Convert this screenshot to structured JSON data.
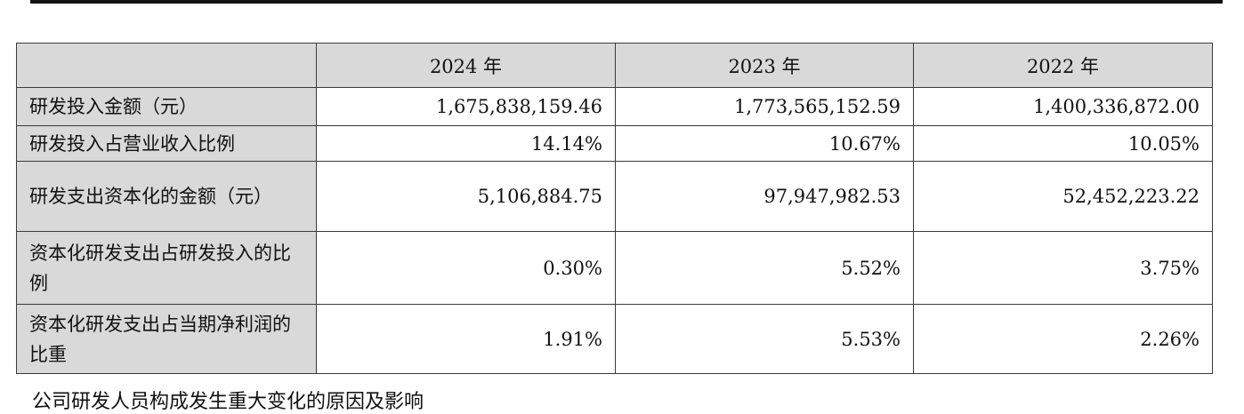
{
  "table": {
    "headers": [
      "",
      "2024 年",
      "2023 年",
      "2022 年"
    ],
    "rows": [
      {
        "label": "研发投入金额（元）",
        "values": [
          "1,675,838,159.46",
          "1,773,565,152.59",
          "1,400,336,872.00"
        ]
      },
      {
        "label": "研发投入占营业收入比例",
        "values": [
          "14.14%",
          "10.67%",
          "10.05%"
        ]
      },
      {
        "label": "研发支出资本化的金额（元）",
        "values": [
          "5,106,884.75",
          "97,947,982.53",
          "52,452,223.22"
        ]
      },
      {
        "label": "资本化研发支出占研发投入的比例",
        "values": [
          "0.30%",
          "5.52%",
          "3.75%"
        ]
      },
      {
        "label": "资本化研发支出占当期净利润的比重",
        "values": [
          "1.91%",
          "5.53%",
          "2.26%"
        ]
      }
    ]
  },
  "footer": {
    "text": "公司研发人员构成发生重大变化的原因及影响"
  }
}
